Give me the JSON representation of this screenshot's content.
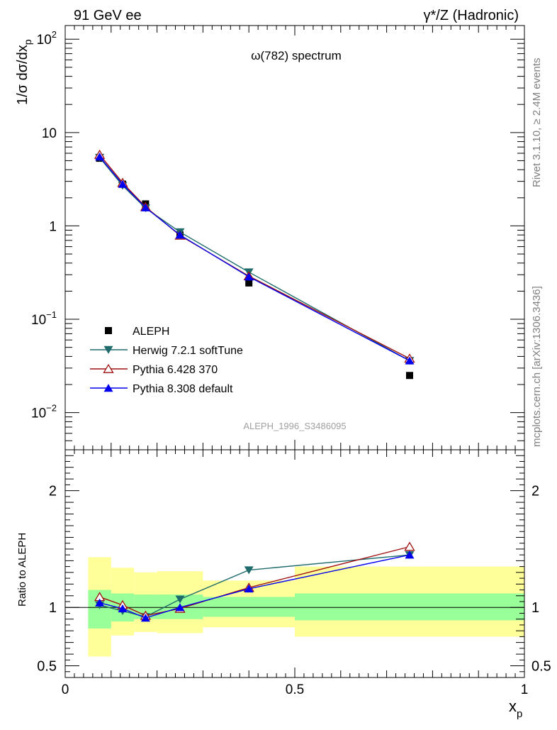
{
  "header": {
    "left": "91 GeV ee",
    "right": "γ*/Z (Hadronic)"
  },
  "side": {
    "top": "Rivet 3.1.10, ≥ 2.4M events",
    "bottom": "mcplots.cern.ch [arXiv:1306.3436]"
  },
  "chart_data": [
    {
      "type": "line",
      "title": "ω(782) spectrum",
      "ylabel": "1/σ dσ/dx_p",
      "yscale": "log",
      "ylim": [
        0.004,
        140
      ],
      "xlim": [
        0,
        1
      ],
      "y_ticks": [
        {
          "value": 0.01,
          "base": "10",
          "exp": "−2"
        },
        {
          "value": 0.1,
          "base": "10",
          "exp": "−1"
        },
        {
          "value": 1,
          "base": "1",
          "exp": ""
        },
        {
          "value": 10,
          "base": "10",
          "exp": ""
        },
        {
          "value": 100,
          "base": "10",
          "exp": "2"
        }
      ],
      "watermark": "ALEPH_1996_S3486095",
      "legend_position": "lower-left",
      "x": [
        0.075,
        0.125,
        0.175,
        0.25,
        0.4,
        0.75
      ],
      "series": [
        {
          "name": "ALEPH",
          "color": "#000000",
          "marker": "square",
          "values": [
            5.3,
            2.8,
            1.72,
            0.8,
            0.245,
            0.025
          ]
        },
        {
          "name": "Herwig 7.2.1 softTune",
          "color": "#1f6b6b",
          "marker": "triangle-down",
          "values": [
            5.4,
            2.7,
            1.55,
            0.86,
            0.32,
            0.036
          ]
        },
        {
          "name": "Pythia 6.428 370",
          "color": "#a01010",
          "marker": "triangle-up-open",
          "values": [
            5.8,
            2.9,
            1.6,
            0.79,
            0.29,
            0.038
          ]
        },
        {
          "name": "Pythia 8.308 default",
          "color": "#0000ee",
          "marker": "triangle-up",
          "values": [
            5.5,
            2.8,
            1.57,
            0.8,
            0.285,
            0.036
          ]
        }
      ]
    },
    {
      "type": "line",
      "ylabel": "Ratio to ALEPH",
      "xlabel": "x_p",
      "ylim": [
        0.4,
        2.35
      ],
      "xlim": [
        0,
        1
      ],
      "y_ticks": [
        0.5,
        1,
        2
      ],
      "x_ticks": [
        "0",
        "0.5",
        "1"
      ],
      "reference": 1,
      "bands": [
        {
          "x0": 0.05,
          "x1": 0.1,
          "green": [
            0.82,
            1.15
          ],
          "yellow": [
            0.58,
            1.43
          ]
        },
        {
          "x0": 0.1,
          "x1": 0.15,
          "green": [
            0.88,
            1.12
          ],
          "yellow": [
            0.76,
            1.34
          ]
        },
        {
          "x0": 0.15,
          "x1": 0.2,
          "green": [
            0.9,
            1.11
          ],
          "yellow": [
            0.79,
            1.3
          ]
        },
        {
          "x0": 0.2,
          "x1": 0.3,
          "green": [
            0.9,
            1.11
          ],
          "yellow": [
            0.78,
            1.31
          ]
        },
        {
          "x0": 0.3,
          "x1": 0.5,
          "green": [
            0.92,
            1.09
          ],
          "yellow": [
            0.83,
            1.23
          ]
        },
        {
          "x0": 0.5,
          "x1": 1.0,
          "green": [
            0.89,
            1.12
          ],
          "yellow": [
            0.75,
            1.35
          ]
        }
      ],
      "x": [
        0.075,
        0.125,
        0.175,
        0.25,
        0.4,
        0.75
      ],
      "series": [
        {
          "name": "Herwig 7.2.1 softTune",
          "color": "#1f6b6b",
          "marker": "triangle-down",
          "values": [
            1.02,
            0.97,
            0.92,
            1.07,
            1.32,
            1.45
          ]
        },
        {
          "name": "Pythia 6.428 370",
          "color": "#a01010",
          "marker": "triangle-up-open",
          "values": [
            1.09,
            1.02,
            0.93,
            0.99,
            1.17,
            1.52
          ]
        },
        {
          "name": "Pythia 8.308 default",
          "color": "#0000ee",
          "marker": "triangle-up",
          "values": [
            1.04,
            0.99,
            0.91,
            1.0,
            1.16,
            1.45
          ]
        }
      ]
    }
  ]
}
